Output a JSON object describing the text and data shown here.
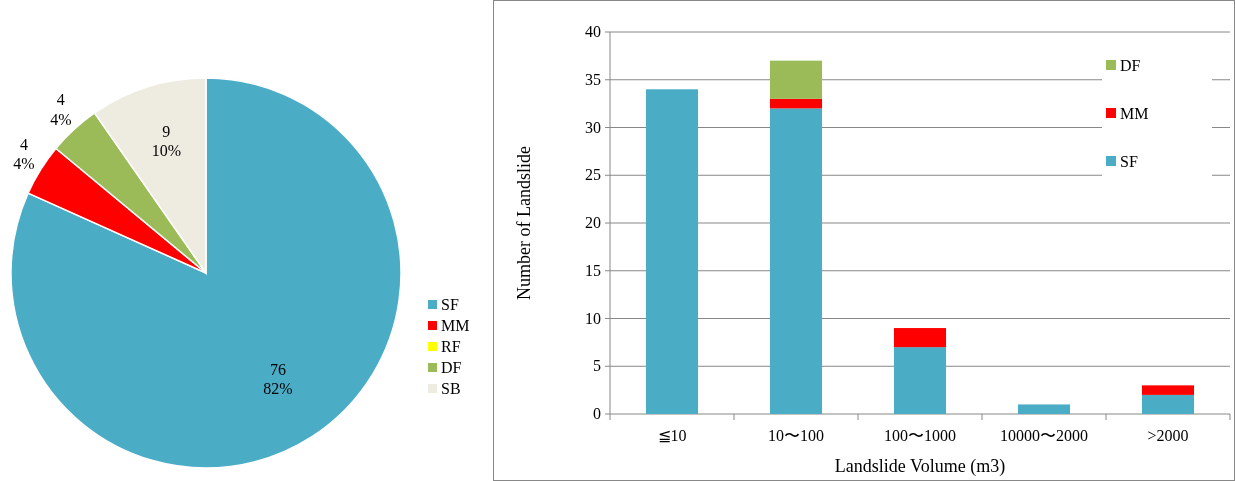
{
  "chart_data": [
    {
      "type": "pie",
      "categories": [
        "SF",
        "MM",
        "RF",
        "DF",
        "SB"
      ],
      "values": [
        76,
        4,
        0,
        4,
        9
      ],
      "colors": [
        "#4bacc6",
        "#ff0000",
        "#ffff00",
        "#9bbb59",
        "#eeece1"
      ],
      "value_labels": [
        "76\n82%",
        "4\n4%",
        null,
        "4\n4%",
        "9\n10%"
      ],
      "legend": "right"
    },
    {
      "type": "bar",
      "stacked": true,
      "categories": [
        "≦10",
        "10〜100",
        "100〜1000",
        "10000〜2000",
        ">2000"
      ],
      "series": [
        {
          "name": "SF",
          "color": "#4bacc6",
          "values": [
            34,
            32,
            7,
            1,
            2
          ]
        },
        {
          "name": "MM",
          "color": "#ff0000",
          "values": [
            0,
            1,
            2,
            0,
            1
          ]
        },
        {
          "name": "DF",
          "color": "#9bbb59",
          "values": [
            0,
            4,
            0,
            0,
            0
          ]
        }
      ],
      "ylim": [
        0,
        40
      ],
      "yticks": [
        0,
        5,
        10,
        15,
        20,
        25,
        30,
        35,
        40
      ],
      "grid": "y",
      "legend": "top right",
      "xlabel": "Landslide Volume (m3)",
      "ylabel": "Number of Landslide"
    }
  ]
}
